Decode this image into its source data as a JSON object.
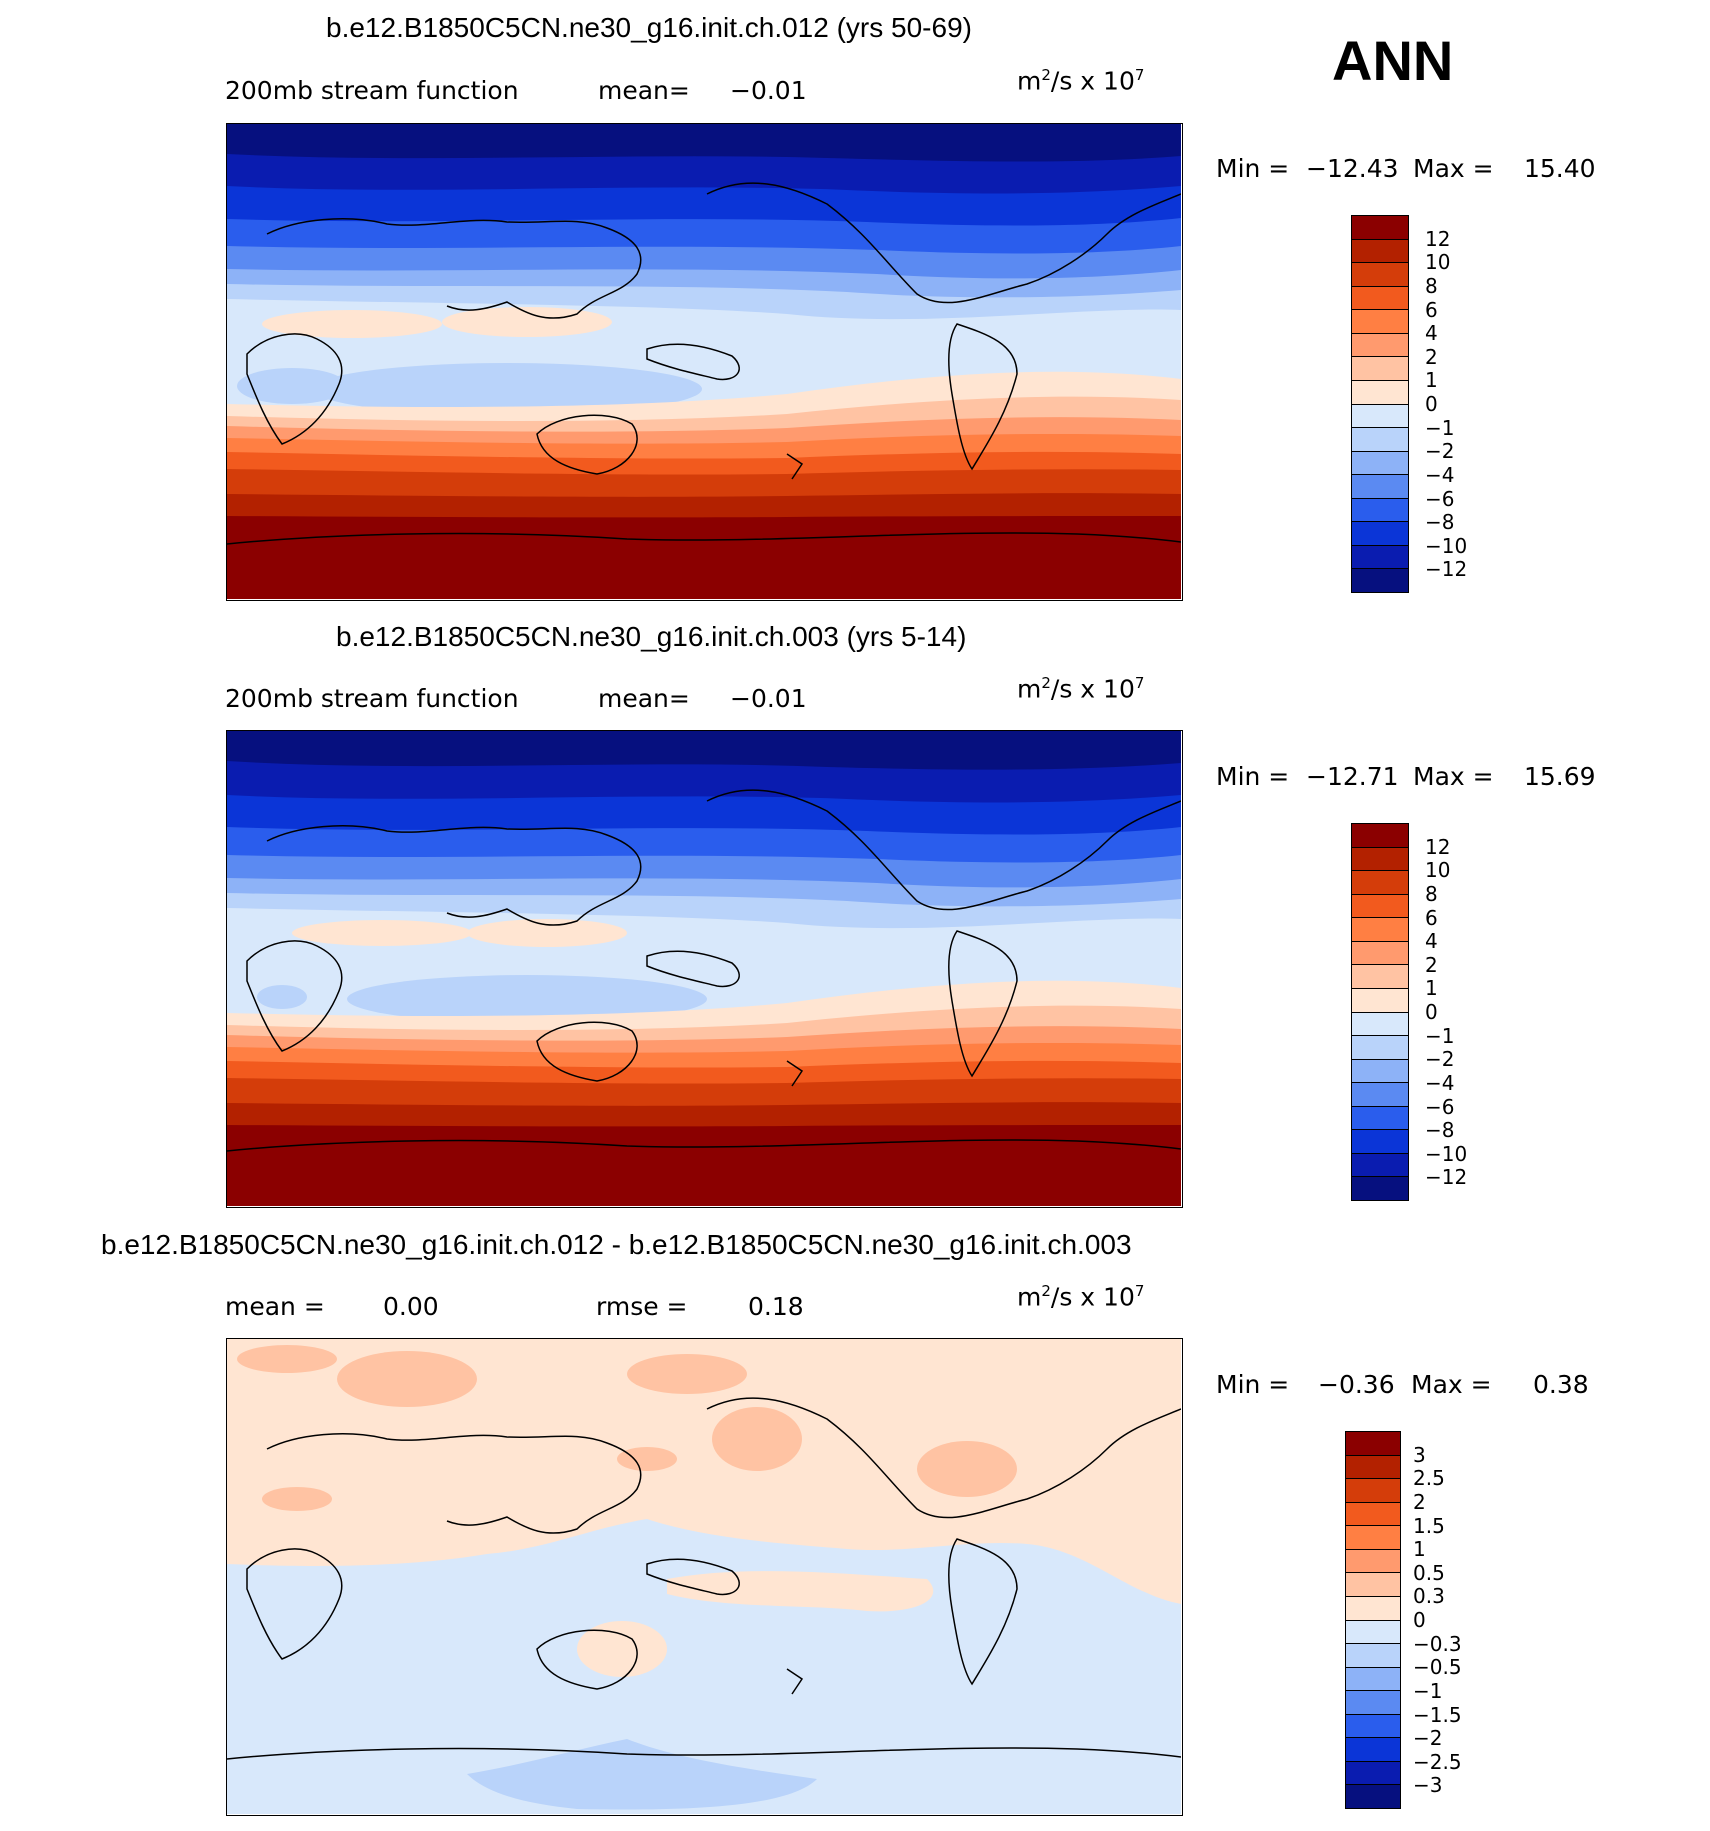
{
  "season": "ANN",
  "panels": [
    {
      "title": "b.e12.B1850C5CN.ne30_g16.init.ch.012 (yrs 50-69)",
      "subtitle_left": "200mb stream function",
      "mean_label": "mean=",
      "mean_value": "-0.01",
      "units": "m",
      "units_tail": "/s x 10",
      "units_sup1": "2",
      "units_sup2": "7",
      "min_label": "Min =",
      "min_value": "-12.43",
      "max_label": "Max =",
      "max_value": "15.40",
      "levels": [
        "12",
        "10",
        "8",
        "6",
        "4",
        "2",
        "1",
        "0",
        "-1",
        "-2",
        "-4",
        "-6",
        "-8",
        "-10",
        "-12"
      ]
    },
    {
      "title": "b.e12.B1850C5CN.ne30_g16.init.ch.003 (yrs 5-14)",
      "subtitle_left": "200mb stream function",
      "mean_label": "mean=",
      "mean_value": "-0.01",
      "units": "m",
      "units_tail": "/s x 10",
      "units_sup1": "2",
      "units_sup2": "7",
      "min_label": "Min =",
      "min_value": "-12.71",
      "max_label": "Max =",
      "max_value": "15.69",
      "levels": [
        "12",
        "10",
        "8",
        "6",
        "4",
        "2",
        "1",
        "0",
        "-1",
        "-2",
        "-4",
        "-6",
        "-8",
        "-10",
        "-12"
      ]
    },
    {
      "title": "b.e12.B1850C5CN.ne30_g16.init.ch.012 - b.e12.B1850C5CN.ne30_g16.init.ch.003",
      "subtitle_left": "mean =",
      "mean_label": "",
      "mean_value": "0.00",
      "rmse_label": "rmse =",
      "rmse_value": "0.18",
      "units": "m",
      "units_tail": "/s x 10",
      "units_sup1": "2",
      "units_sup2": "7",
      "min_label": "Min =",
      "min_value": "-0.36",
      "max_label": "Max =",
      "max_value": "0.38",
      "levels": [
        "3",
        "2.5",
        "2",
        "1.5",
        "1",
        "0.5",
        "0.3",
        "0",
        "-0.3",
        "-0.5",
        "-1",
        "-1.5",
        "-2",
        "-2.5",
        "-3"
      ]
    }
  ],
  "colorbar_colors": [
    "#8b0000",
    "#b32100",
    "#d43d0a",
    "#f25a1e",
    "#ff7f43",
    "#ff9a6e",
    "#ffc3a3",
    "#ffe5d2",
    "#d8e8fb",
    "#b9d3fa",
    "#8db2f7",
    "#5b8af2",
    "#2a5ded",
    "#0b35d7",
    "#0a1cb0",
    "#06107f"
  ],
  "map_colors": {
    "deep_blue": "#06107f",
    "blue_12": "#0a1cb0",
    "blue_10": "#0b35d7",
    "blue_8": "#2a5ded",
    "blue_6": "#5b8af2",
    "blue_4": "#8db2f7",
    "blue_2": "#b9d3fa",
    "blue_1": "#d8e8fb",
    "cream": "#ffe5d2",
    "peach": "#ffc3a3",
    "salmon": "#ff9a6e",
    "orange": "#ff7f43",
    "red_orange": "#f25a1e",
    "red": "#d43d0a",
    "dark_red": "#b32100",
    "darkest": "#8b0000"
  }
}
